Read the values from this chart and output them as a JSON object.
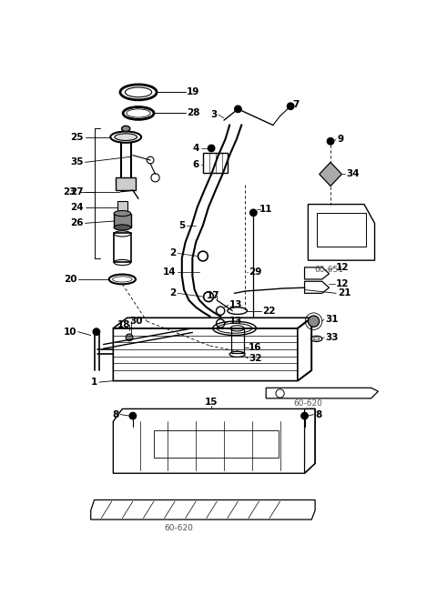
{
  "bg_color": "#ffffff",
  "line_color": "#000000",
  "fig_width": 4.8,
  "fig_height": 6.65,
  "dpi": 100
}
